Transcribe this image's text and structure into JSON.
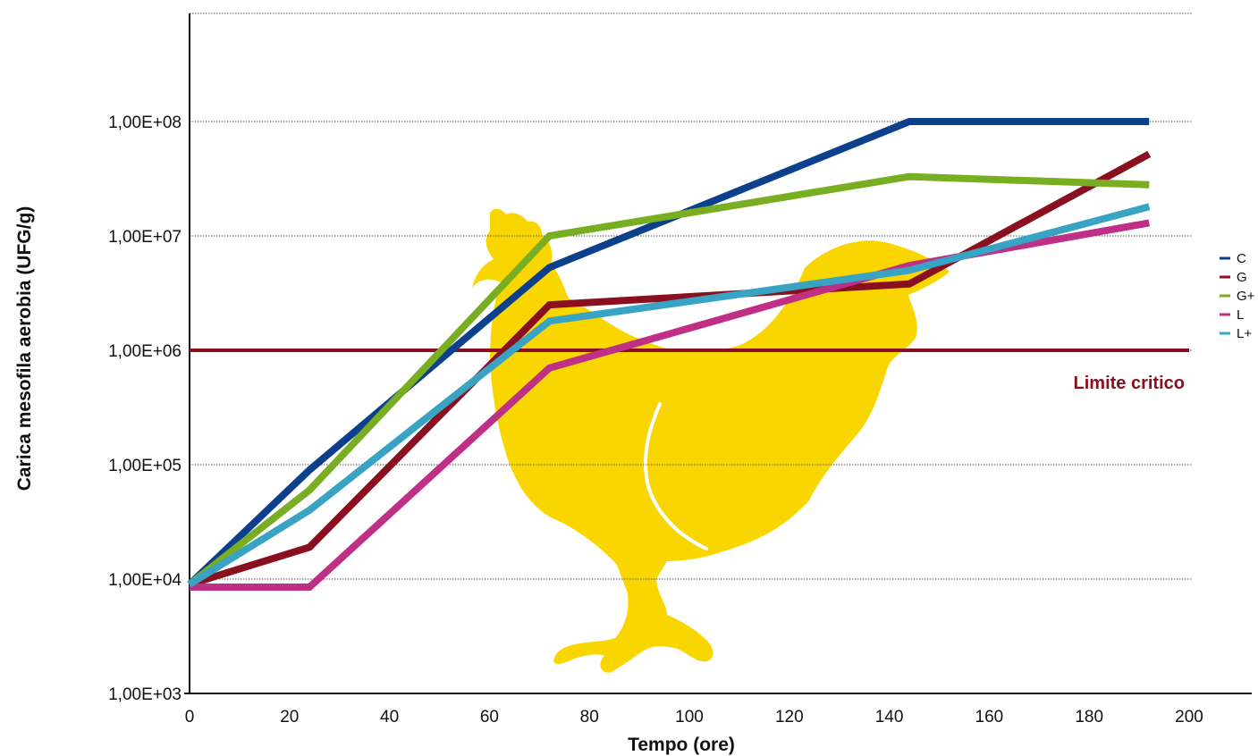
{
  "chart_data": {
    "type": "line",
    "title": "",
    "xlabel": "Tempo (ore)",
    "ylabel": "Carica mesofila aerobia (UFG/g)",
    "y_scale": "log",
    "xlim": [
      0,
      200
    ],
    "ylim": [
      1000,
      1000000000
    ],
    "x_ticks": [
      "0",
      "20",
      "40",
      "60",
      "80",
      "100",
      "120",
      "140",
      "160",
      "180",
      "200"
    ],
    "x_tick_values": [
      0,
      20,
      40,
      60,
      80,
      100,
      120,
      140,
      160,
      180,
      200
    ],
    "y_ticks": [
      "1,00E+03",
      "1,00E+04",
      "1,00E+05",
      "1,00E+06",
      "1,00E+07",
      "1,00E+08"
    ],
    "y_tick_values": [
      1000,
      10000,
      100000,
      1000000,
      10000000,
      100000000
    ],
    "grid": "horizontal dotted",
    "legend_position": "right",
    "series": [
      {
        "name": "C",
        "color": "#0c3f8c",
        "x": [
          0,
          24,
          72,
          144,
          192
        ],
        "y": [
          9000,
          90000,
          5300000,
          100000000,
          100000000
        ]
      },
      {
        "name": "G",
        "color": "#8a1020",
        "x": [
          0,
          24,
          72,
          144,
          192
        ],
        "y": [
          9000,
          19000,
          2500000,
          3800000,
          52000000
        ]
      },
      {
        "name": "G+",
        "color": "#7aae22",
        "x": [
          0,
          24,
          72,
          144,
          192
        ],
        "y": [
          9000,
          60000,
          10000000,
          33000000,
          28000000
        ]
      },
      {
        "name": "L",
        "color": "#bf2f86",
        "x": [
          0,
          24,
          72,
          144,
          192
        ],
        "y": [
          8500,
          8500,
          700000,
          5500000,
          13000000
        ]
      },
      {
        "name": "L+",
        "color": "#38a3c2",
        "x": [
          0,
          24,
          72,
          144,
          192
        ],
        "y": [
          9000,
          40000,
          1800000,
          5000000,
          18000000
        ]
      }
    ],
    "reference_line": {
      "label": "Limite critico",
      "y": 1000000,
      "color": "#8a1020"
    },
    "decoration": {
      "name": "rooster-silhouette",
      "color": "#f9d600"
    }
  }
}
